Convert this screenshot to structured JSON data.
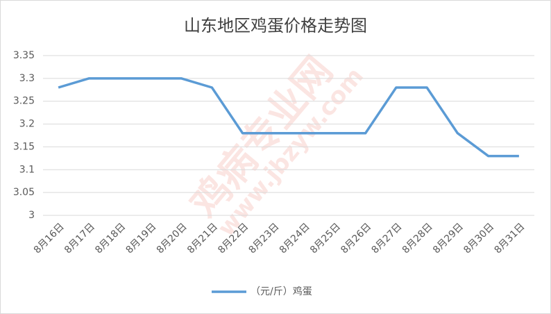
{
  "chart_data": {
    "type": "line",
    "title": "山东地区鸡蛋价格走势图",
    "categories": [
      "8月16日",
      "8月17日",
      "8月18日",
      "8月19日",
      "8月20日",
      "8月21日",
      "8月22日",
      "8月23日",
      "8月24日",
      "8月25日",
      "8月26日",
      "8月27日",
      "8月28日",
      "8月29日",
      "8月30日",
      "8月31日"
    ],
    "series": [
      {
        "name": "（元/斤）鸡蛋",
        "color": "#5b9bd5",
        "values": [
          3.28,
          3.3,
          3.3,
          3.3,
          3.3,
          3.28,
          3.18,
          3.18,
          3.18,
          3.18,
          3.18,
          3.28,
          3.28,
          3.18,
          3.13,
          3.13
        ]
      }
    ],
    "ylim": [
      3,
      3.35
    ],
    "yticks": [
      3,
      3.05,
      3.1,
      3.15,
      3.2,
      3.25,
      3.3,
      3.35
    ],
    "grid": true,
    "legend": "bottom",
    "watermark": [
      "鸡病专业网",
      "www.jbzyw.com"
    ]
  }
}
